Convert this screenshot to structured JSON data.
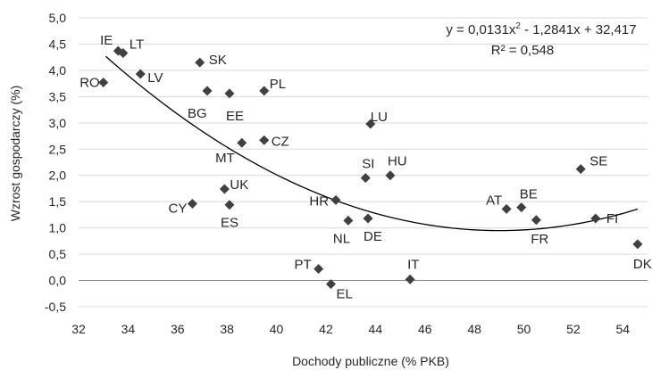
{
  "chart_data": {
    "type": "scatter",
    "xlabel": "Dochody publiczne (% PKB)",
    "ylabel": "Wzrost gospodarczy (%)",
    "xlim": [
      32,
      55
    ],
    "ylim": [
      -0.5,
      5.0
    ],
    "x_ticks": [
      "32",
      "34",
      "36",
      "38",
      "40",
      "42",
      "44",
      "46",
      "48",
      "50",
      "52",
      "54"
    ],
    "y_ticks": [
      "-0,5",
      "0,0",
      "0,5",
      "1,0",
      "1,5",
      "2,0",
      "2,5",
      "3,0",
      "3,5",
      "4,0",
      "4,5",
      "5,0"
    ],
    "grid": "horizontal",
    "marker_color": "#404040",
    "trendline": {
      "type": "polynomial",
      "coefficients": [
        0.0131,
        -1.2841,
        32.417
      ],
      "x_range": [
        33.1,
        54.6
      ],
      "equation_text": "y = 0,0131x",
      "equation_sup": "2",
      "equation_rest": " - 1,2841x + 32,417",
      "r2_text": "R² = 0,548",
      "color": "#000000"
    },
    "points": [
      {
        "label": "IE",
        "x": 33.6,
        "y": 4.37
      },
      {
        "label": "LT",
        "x": 33.8,
        "y": 4.33
      },
      {
        "label": "RO",
        "x": 33.0,
        "y": 3.77
      },
      {
        "label": "LV",
        "x": 34.5,
        "y": 3.93
      },
      {
        "label": "SK",
        "x": 36.9,
        "y": 4.15
      },
      {
        "label": "BG",
        "x": 37.2,
        "y": 3.61
      },
      {
        "label": "EE",
        "x": 38.1,
        "y": 3.56
      },
      {
        "label": "PL",
        "x": 39.5,
        "y": 3.61
      },
      {
        "label": "MT",
        "x": 38.6,
        "y": 2.62
      },
      {
        "label": "CZ",
        "x": 39.5,
        "y": 2.67
      },
      {
        "label": "LU",
        "x": 43.8,
        "y": 2.98
      },
      {
        "label": "SI",
        "x": 43.6,
        "y": 1.95
      },
      {
        "label": "HU",
        "x": 44.6,
        "y": 2.0
      },
      {
        "label": "UK",
        "x": 37.9,
        "y": 1.74
      },
      {
        "label": "CY",
        "x": 36.6,
        "y": 1.46
      },
      {
        "label": "ES",
        "x": 38.1,
        "y": 1.44
      },
      {
        "label": "HR",
        "x": 42.4,
        "y": 1.53
      },
      {
        "label": "NL",
        "x": 42.9,
        "y": 1.14
      },
      {
        "label": "DE",
        "x": 43.7,
        "y": 1.18
      },
      {
        "label": "AT",
        "x": 49.3,
        "y": 1.36
      },
      {
        "label": "BE",
        "x": 49.9,
        "y": 1.39
      },
      {
        "label": "FR",
        "x": 50.5,
        "y": 1.15
      },
      {
        "label": "SE",
        "x": 52.3,
        "y": 2.12
      },
      {
        "label": "FI",
        "x": 52.9,
        "y": 1.18
      },
      {
        "label": "DK",
        "x": 54.6,
        "y": 0.69
      },
      {
        "label": "PT",
        "x": 41.7,
        "y": 0.22
      },
      {
        "label": "EL",
        "x": 42.2,
        "y": -0.07
      },
      {
        "label": "IT",
        "x": 45.4,
        "y": 0.02
      }
    ]
  }
}
